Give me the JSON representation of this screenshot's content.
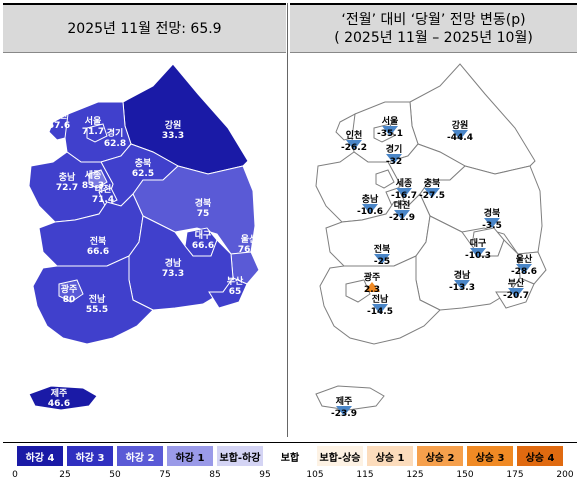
{
  "left_panel": {
    "title": "2025년 11월 전망: 65.9",
    "regions": [
      {
        "id": "gangwon",
        "name": "강원",
        "value": "33.3",
        "color": "#1a1aa6"
      },
      {
        "id": "seoul",
        "name": "서울",
        "value": "71.7",
        "color": "#4040cc"
      },
      {
        "id": "gyeonggi",
        "name": "경기",
        "value": "62.8",
        "color": "#4040cc"
      },
      {
        "id": "incheon",
        "name": "인천",
        "value": "57.6",
        "color": "#4040cc"
      },
      {
        "id": "chungbuk",
        "name": "충북",
        "value": "62.5",
        "color": "#4040cc"
      },
      {
        "id": "chungnam",
        "name": "충남",
        "value": "72.7",
        "color": "#4040cc"
      },
      {
        "id": "sejong",
        "name": "세종",
        "value": "83.3",
        "color": "#7a7ae0"
      },
      {
        "id": "daejeon",
        "name": "대전",
        "value": "71.4",
        "color": "#4040cc"
      },
      {
        "id": "gyeongbuk",
        "name": "경북",
        "value": "75",
        "color": "#5a5ad6"
      },
      {
        "id": "daegu",
        "name": "대구",
        "value": "66.6",
        "color": "#4040cc"
      },
      {
        "id": "ulsan",
        "name": "울산",
        "value": "76.9",
        "color": "#5a5ad6"
      },
      {
        "id": "jeonbuk",
        "name": "전북",
        "value": "66.6",
        "color": "#4040cc"
      },
      {
        "id": "gyeongnam",
        "name": "경남",
        "value": "73.3",
        "color": "#4040cc"
      },
      {
        "id": "busan",
        "name": "부산",
        "value": "65",
        "color": "#4040cc"
      },
      {
        "id": "gwangju",
        "name": "광주",
        "value": "80",
        "color": "#5a5ad6"
      },
      {
        "id": "jeonnam",
        "name": "전남",
        "value": "55.5",
        "color": "#4040cc"
      },
      {
        "id": "jeju",
        "name": "제주",
        "value": "46.6",
        "color": "#1a1aa6"
      }
    ]
  },
  "right_panel": {
    "title_line1": "‘전월’ 대비 ‘당월’ 전망 변동(p)",
    "title_line2": "( 2025년 11월 –  2025년 10월)",
    "regions": [
      {
        "id": "seoul",
        "name": "서울",
        "value": "-35.1",
        "direction": "down"
      },
      {
        "id": "incheon",
        "name": "인천",
        "value": "-26.2",
        "direction": "down"
      },
      {
        "id": "gyeonggi",
        "name": "경기",
        "value": "-32",
        "direction": "down"
      },
      {
        "id": "gangwon",
        "name": "강원",
        "value": "-44.4",
        "direction": "down"
      },
      {
        "id": "sejong",
        "name": "세종",
        "value": "-16.7",
        "direction": "down"
      },
      {
        "id": "chungbuk",
        "name": "충북",
        "value": "-27.5",
        "direction": "down"
      },
      {
        "id": "chungnam",
        "name": "충남",
        "value": "-10.6",
        "direction": "down"
      },
      {
        "id": "daejeon",
        "name": "대전",
        "value": "-21.9",
        "direction": "down"
      },
      {
        "id": "gyeongbuk",
        "name": "경북",
        "value": "-3.5",
        "direction": "down"
      },
      {
        "id": "jeonbuk",
        "name": "전북",
        "value": "-25",
        "direction": "down"
      },
      {
        "id": "daegu",
        "name": "대구",
        "value": "-10.3",
        "direction": "down"
      },
      {
        "id": "ulsan",
        "name": "울산",
        "value": "-28.6",
        "direction": "down"
      },
      {
        "id": "gwangju",
        "name": "광주",
        "value": "2.3",
        "direction": "up"
      },
      {
        "id": "gyeongnam",
        "name": "경남",
        "value": "-13.3",
        "direction": "down"
      },
      {
        "id": "busan",
        "name": "부산",
        "value": "-20.7",
        "direction": "down"
      },
      {
        "id": "jeonnam",
        "name": "전남",
        "value": "-14.5",
        "direction": "down"
      },
      {
        "id": "jeju",
        "name": "제주",
        "value": "-23.9",
        "direction": "down"
      }
    ],
    "colors": {
      "down": "#4a86c8",
      "up": "#f08a24"
    }
  },
  "legend": {
    "items": [
      {
        "label": "하강 4",
        "bg": "#1a1aa6",
        "fg": "#ffffff"
      },
      {
        "label": "하강 3",
        "bg": "#3030c0",
        "fg": "#ffffff"
      },
      {
        "label": "하강 2",
        "bg": "#5a5ad6",
        "fg": "#ffffff"
      },
      {
        "label": "하강 1",
        "bg": "#9a9ae8",
        "fg": "#000000"
      },
      {
        "label": "보합-하강",
        "bg": "#d4d4f4",
        "fg": "#000000"
      },
      {
        "label": "보합",
        "bg": "#ffffff",
        "fg": "#000000"
      },
      {
        "label": "보합-상승",
        "bg": "#fdf2e4",
        "fg": "#000000"
      },
      {
        "label": "상승 1",
        "bg": "#fcdcbc",
        "fg": "#000000"
      },
      {
        "label": "상승 2",
        "bg": "#f6a04c",
        "fg": "#000000"
      },
      {
        "label": "상승 3",
        "bg": "#f08a24",
        "fg": "#000000"
      },
      {
        "label": "상승 4",
        "bg": "#e06a10",
        "fg": "#000000"
      }
    ],
    "ticks": [
      "0",
      "25",
      "50",
      "75",
      "85",
      "95",
      "105",
      "115",
      "125",
      "150",
      "175",
      "200"
    ]
  }
}
